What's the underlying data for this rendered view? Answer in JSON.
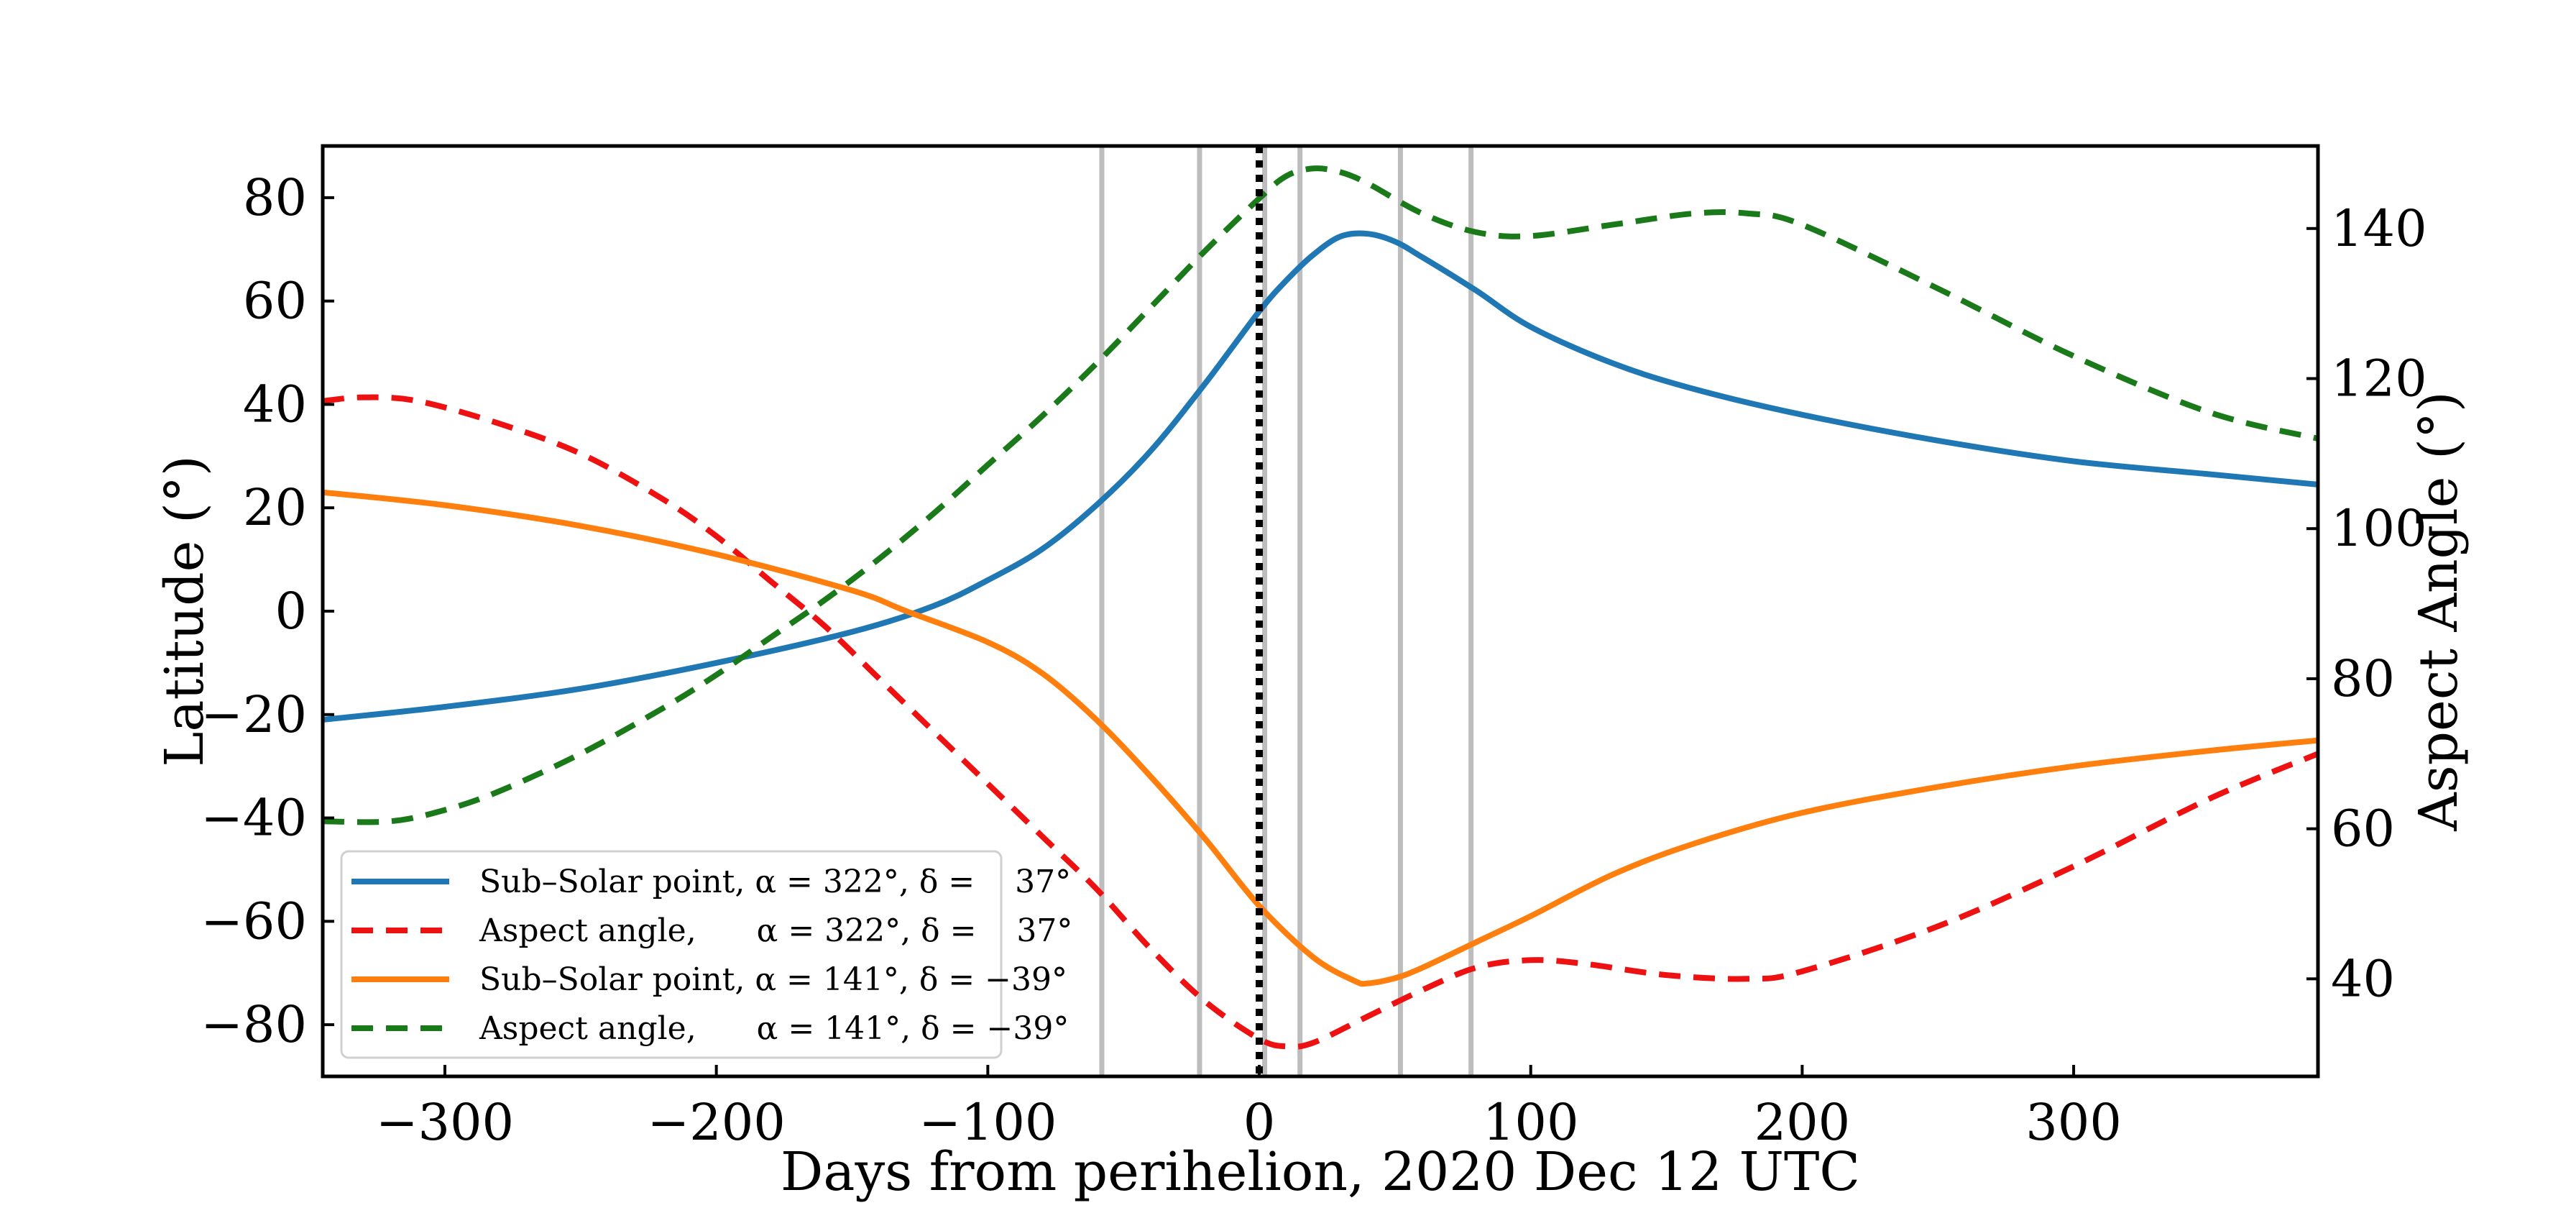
{
  "chart_data": {
    "type": "line",
    "xlabel": "Days from perihelion,  2020 Dec 12 UTC",
    "ylabel_left": "Latitude (°)",
    "ylabel_right": "Aspect Angle (°)",
    "xlim": [
      -345,
      390
    ],
    "ylim_left": [
      -90,
      90
    ],
    "ylim_right": [
      27,
      151
    ],
    "xticks": [
      -300,
      -200,
      -100,
      0,
      100,
      200,
      300
    ],
    "xtick_labels": [
      "−300",
      "−200",
      "−100",
      "0",
      "100",
      "200",
      "300"
    ],
    "yticks_left": [
      -80,
      -60,
      -40,
      -20,
      0,
      20,
      40,
      60,
      80
    ],
    "ytick_labels_left": [
      "−80",
      "−60",
      "−40",
      "−20",
      "0",
      "20",
      "40",
      "60",
      "80"
    ],
    "yticks_right": [
      40,
      60,
      80,
      100,
      120,
      140
    ],
    "ytick_labels_right": [
      "40",
      "60",
      "80",
      "100",
      "120",
      "140"
    ],
    "grid": false,
    "perihelion_marker": {
      "x": 0,
      "style": "dotted",
      "color": "#000000"
    },
    "vertical_lines": {
      "x": [
        -58,
        -22,
        2,
        15,
        52,
        78
      ],
      "color": "#bdbdbd"
    },
    "legend": {
      "placement": "lower-left",
      "entries": [
        "Sub–Solar point, α = 322°, δ =    37°",
        "Aspect angle,      α = 322°, δ =    37°",
        "Sub–Solar point, α = 141°, δ = −39°",
        "Aspect angle,      α = 141°, δ = −39°"
      ]
    },
    "series": [
      {
        "name": "Sub–Solar point, α = 322°, δ = 37°",
        "axis": "left",
        "color": "#1f77b4",
        "dash": "solid",
        "x": [
          -345,
          -300,
          -250,
          -200,
          -150,
          -120,
          -100,
          -80,
          -60,
          -40,
          -20,
          0,
          10,
          20,
          30,
          40,
          50,
          60,
          80,
          100,
          130,
          160,
          200,
          250,
          300,
          350,
          390
        ],
        "y": [
          -21,
          -18.5,
          -15,
          -10,
          -4,
          1,
          6,
          12,
          20.5,
          31,
          44,
          58,
          64,
          69,
          72.5,
          73,
          71.5,
          68.5,
          62,
          55,
          48,
          43,
          38,
          33,
          29,
          26.5,
          24.5
        ]
      },
      {
        "name": "Aspect angle, α = 322°, δ = 37°",
        "axis": "right",
        "color": "#ee1111",
        "dash": "dashed",
        "x": [
          -345,
          -330,
          -310,
          -280,
          -250,
          -220,
          -200,
          -180,
          -160,
          -140,
          -120,
          -100,
          -80,
          -60,
          -40,
          -20,
          0,
          10,
          20,
          40,
          60,
          80,
          100,
          120,
          150,
          180,
          200,
          250,
          300,
          350,
          390
        ],
        "y": [
          117,
          117.5,
          117,
          114,
          110,
          104,
          99,
          93,
          87,
          80,
          73,
          66,
          59,
          52,
          44,
          37,
          32,
          31,
          31.5,
          35,
          38.5,
          41.5,
          42.5,
          42,
          40.5,
          40,
          41,
          47,
          55,
          64,
          70
        ]
      },
      {
        "name": "Sub–Solar point, α = 141°, δ = −39°",
        "axis": "left",
        "color": "#ff7f0e",
        "dash": "solid",
        "x": [
          -345,
          -300,
          -250,
          -200,
          -150,
          -130,
          -100,
          -80,
          -60,
          -40,
          -20,
          0,
          20,
          35,
          40,
          50,
          60,
          80,
          100,
          130,
          160,
          200,
          250,
          300,
          350,
          390
        ],
        "y": [
          23,
          20.5,
          16.5,
          11,
          4,
          0,
          -6,
          -12,
          -21,
          -32,
          -44,
          -57,
          -67,
          -71.5,
          -72,
          -71,
          -69,
          -64,
          -59,
          -51,
          -45,
          -39,
          -34,
          -30,
          -27,
          -25
        ]
      },
      {
        "name": "Aspect angle, α = 141°, δ = −39°",
        "axis": "right",
        "color": "#1a7a1a",
        "dash": "dashed",
        "x": [
          -345,
          -320,
          -300,
          -280,
          -250,
          -220,
          -200,
          -180,
          -160,
          -140,
          -120,
          -100,
          -80,
          -60,
          -40,
          -20,
          0,
          10,
          20,
          30,
          40,
          60,
          80,
          100,
          130,
          160,
          180,
          200,
          250,
          300,
          350,
          390
        ],
        "y": [
          61,
          61,
          62.5,
          65,
          70,
          76,
          80.5,
          85.5,
          90.5,
          96,
          102,
          108.5,
          115,
          122,
          129.5,
          137,
          144,
          147,
          148,
          147.5,
          146,
          142,
          139.5,
          139,
          140.5,
          142,
          142,
          140.5,
          132,
          123,
          115.5,
          112
        ]
      }
    ]
  }
}
